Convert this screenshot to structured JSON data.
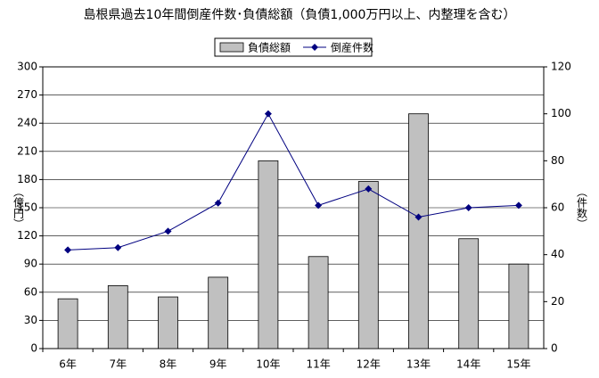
{
  "chart_data": {
    "type": "bar",
    "title": "島根県過去10年間倒産件数･負債総額（負債1,000万円以上、内整理を含む）",
    "categories": [
      "6年",
      "7年",
      "8年",
      "9年",
      "10年",
      "11年",
      "12年",
      "13年",
      "14年",
      "15年"
    ],
    "series": [
      {
        "name": "負債総額",
        "type": "bar",
        "color": "#c0c0c0",
        "values": [
          53,
          67,
          55,
          76,
          200,
          98,
          178,
          250,
          117,
          90
        ]
      },
      {
        "name": "倒産件数",
        "type": "line",
        "axis": "y2",
        "color": "#000080",
        "values": [
          42,
          43,
          50,
          62,
          100,
          61,
          68,
          56,
          60,
          61
        ]
      }
    ],
    "ylabel": "（億円）",
    "y2label": "（件数）",
    "ylim": [
      0,
      300
    ],
    "yticks": [
      0,
      30,
      60,
      90,
      120,
      150,
      180,
      210,
      240,
      270,
      300
    ],
    "y2lim": [
      0,
      120
    ],
    "y2ticks": [
      0,
      20,
      40,
      60,
      80,
      100,
      120
    ],
    "grid": true,
    "legend": "top"
  }
}
